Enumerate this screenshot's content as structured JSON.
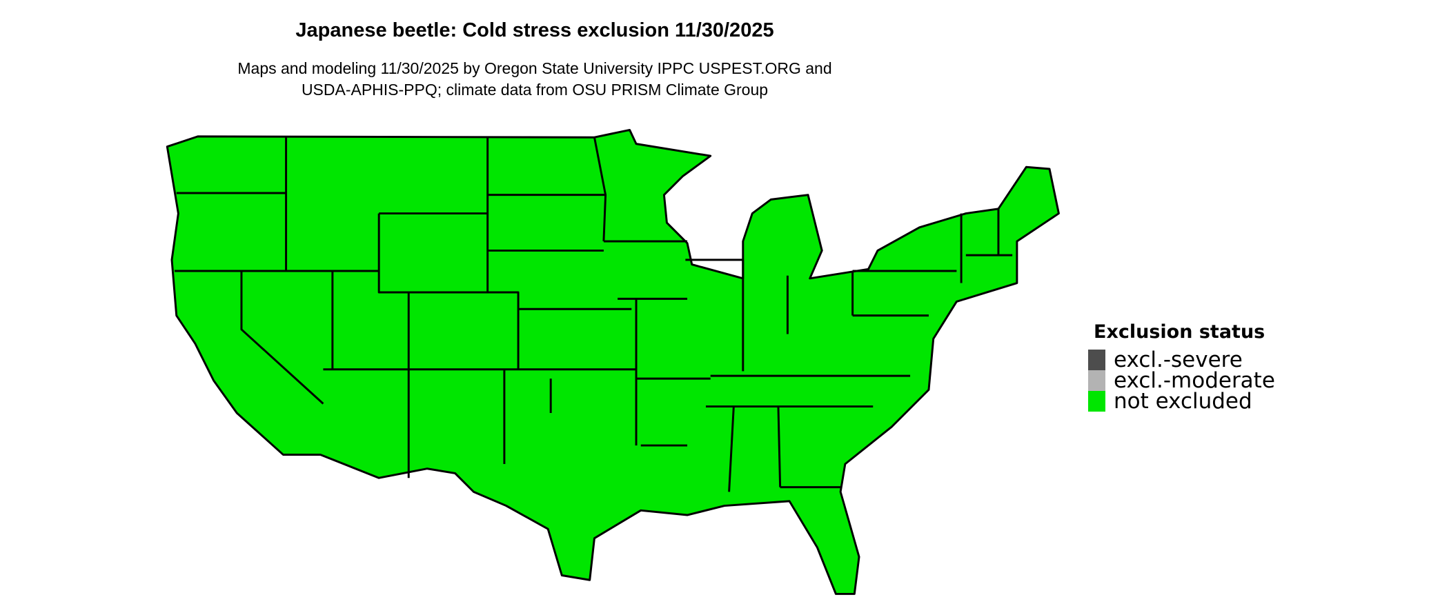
{
  "title": "Japanese beetle: Cold stress exclusion 11/30/2025",
  "subtitle_line1": "Maps and modeling 11/30/2025 by Oregon State University IPPC USPEST.ORG and",
  "subtitle_line2": "USDA-APHIS-PPQ; climate data from OSU PRISM Climate Group",
  "legend": {
    "title": "Exclusion status",
    "items": [
      {
        "label": "excl.-severe",
        "color": "#4D4D4D"
      },
      {
        "label": "excl.-moderate",
        "color": "#B3B3B3"
      },
      {
        "label": "not excluded",
        "color": "#00E600"
      }
    ]
  },
  "map": {
    "region": "Contiguous United States",
    "fill_status": "not excluded",
    "fill_color": "#00E600",
    "border_color": "#000000"
  }
}
